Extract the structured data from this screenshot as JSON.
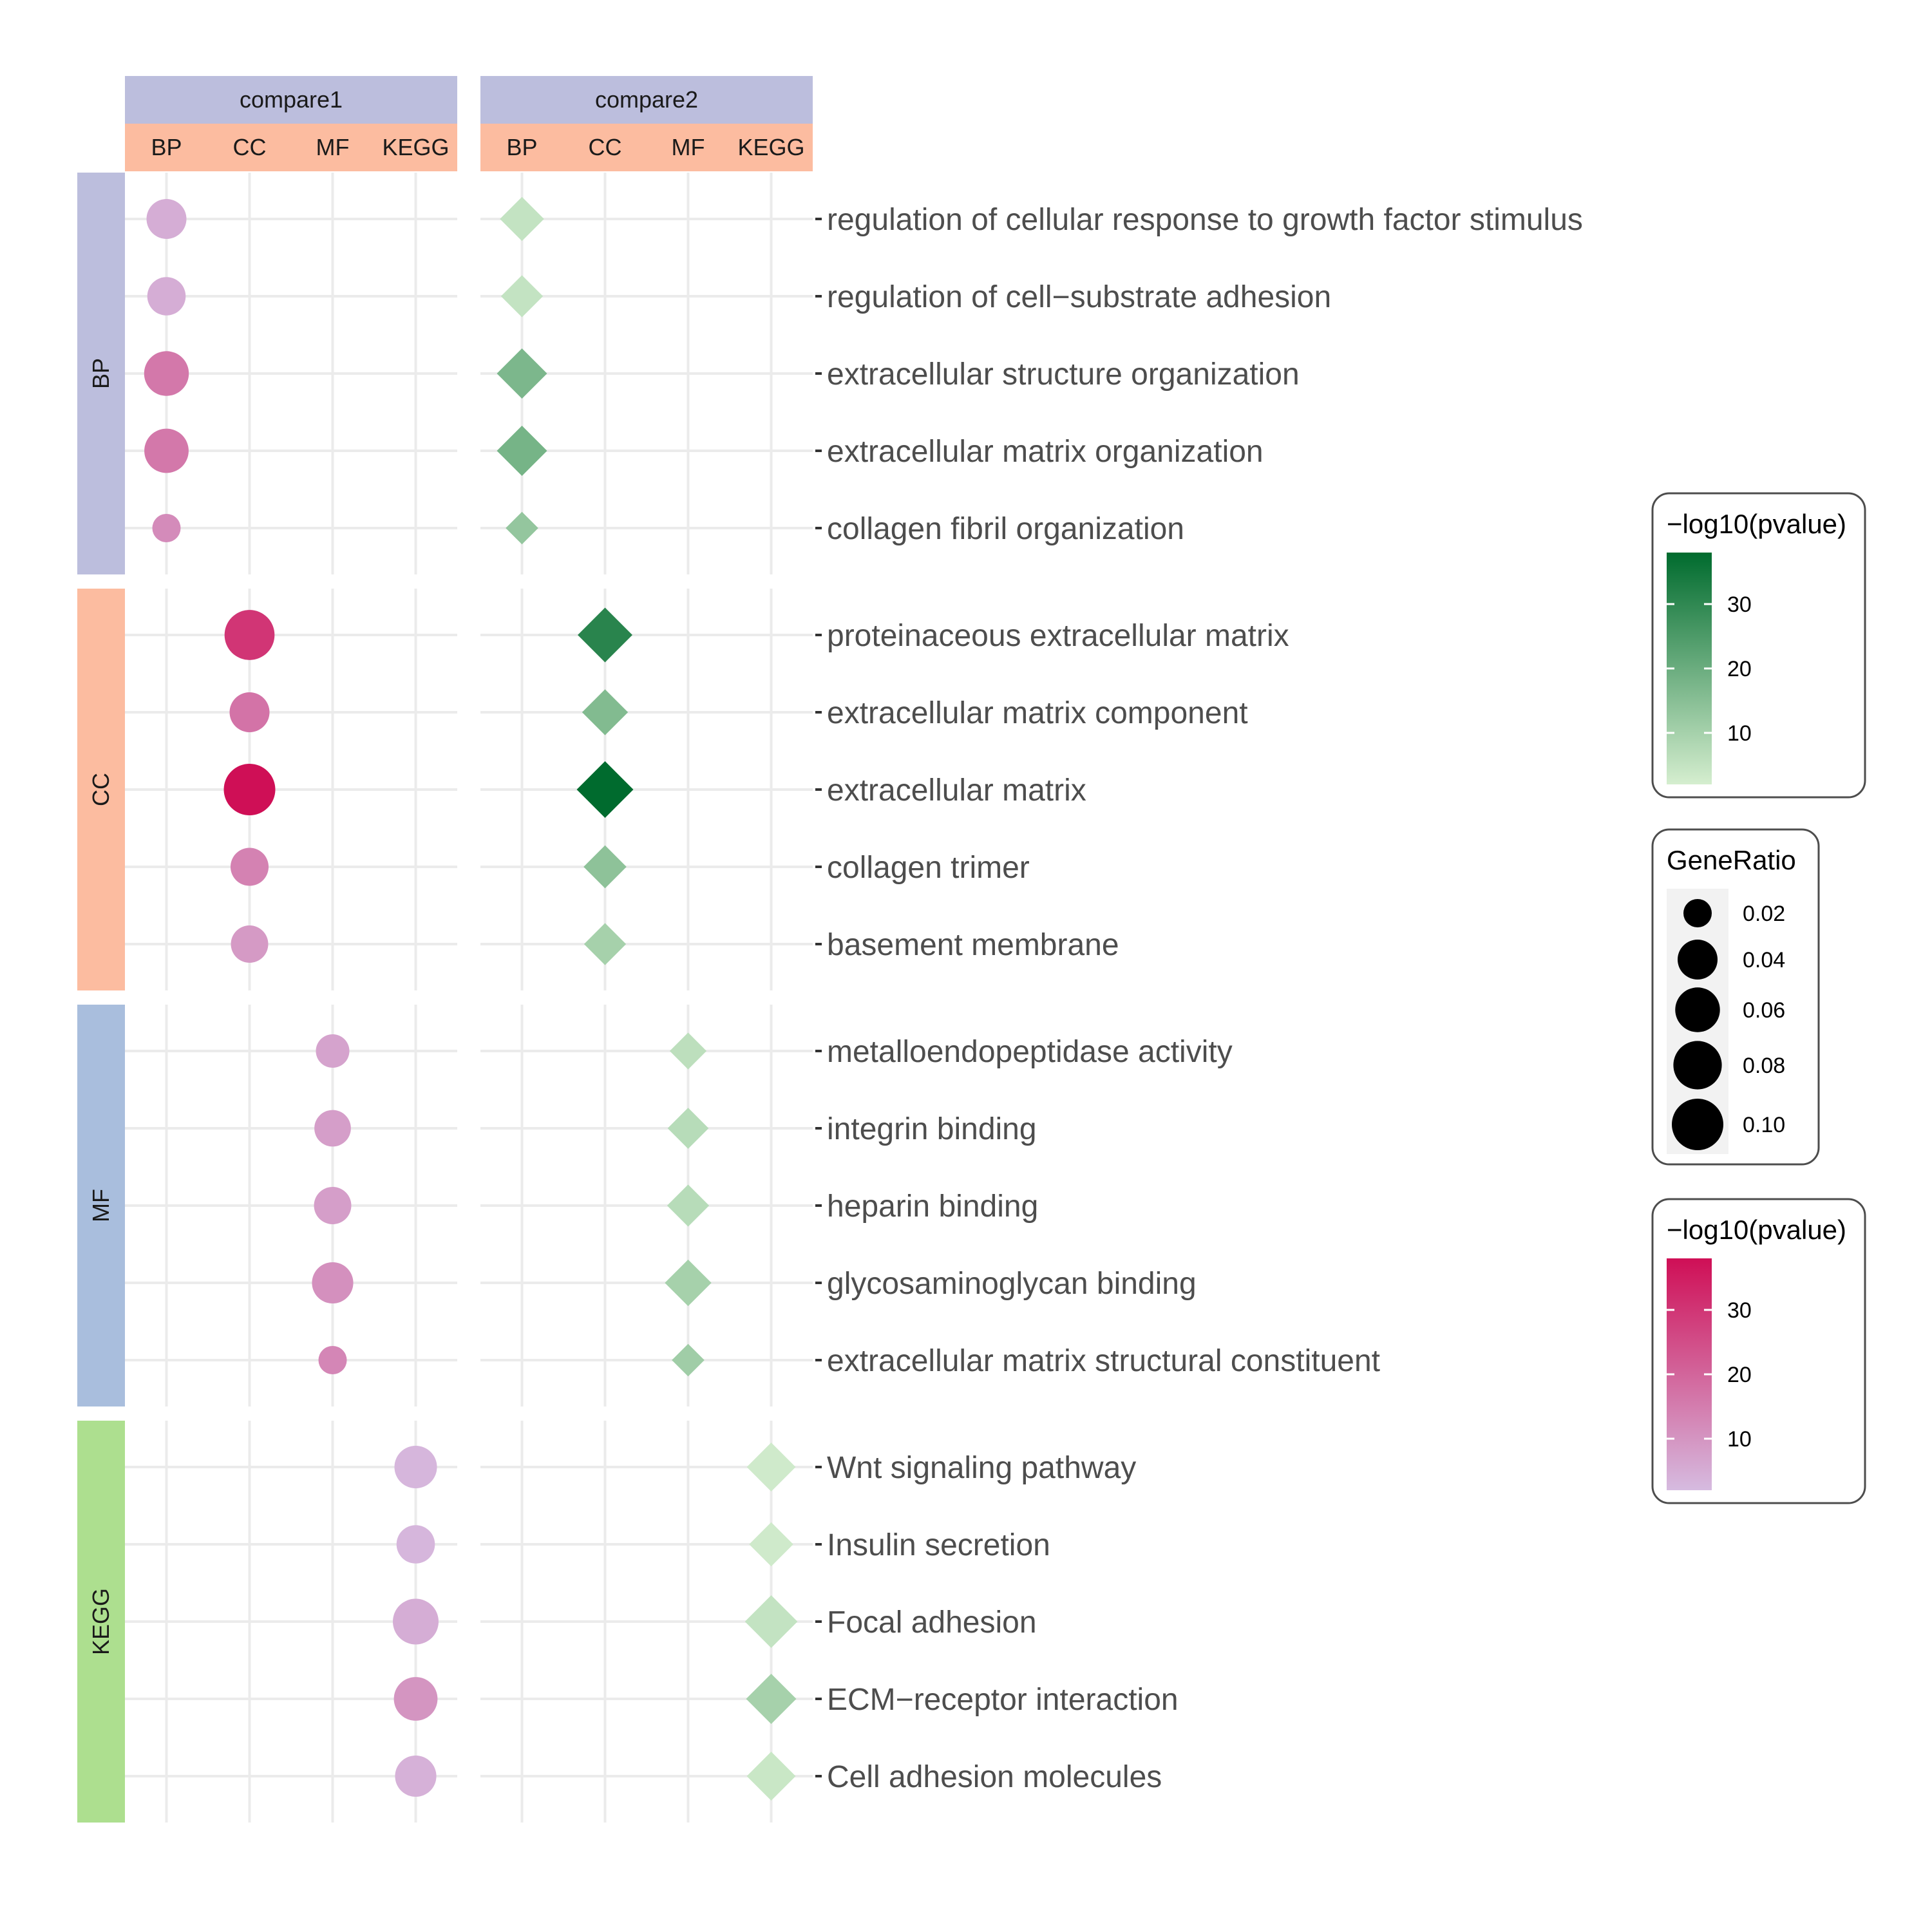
{
  "chart_data": {
    "type": "scatter",
    "subtype": "faceted dot plot",
    "comparisons": [
      "compare1",
      "compare2"
    ],
    "column_categories": [
      "BP",
      "CC",
      "MF",
      "KEGG"
    ],
    "row_groups": [
      {
        "name": "BP",
        "terms": [
          "regulation of cellular response to growth factor stimulus",
          "regulation of cell−substrate adhesion",
          "extracellular structure organization",
          "extracellular matrix organization",
          "collagen fibril organization"
        ]
      },
      {
        "name": "CC",
        "terms": [
          "proteinaceous extracellular matrix",
          "extracellular matrix component",
          "extracellular matrix",
          "collagen trimer",
          "basement membrane"
        ]
      },
      {
        "name": "MF",
        "terms": [
          "metalloendopeptidase activity",
          "integrin binding",
          "heparin binding",
          "glycosaminoglycan binding",
          "extracellular matrix structural constituent"
        ]
      },
      {
        "name": "KEGG",
        "terms": [
          "Wnt signaling pathway",
          "Insulin secretion",
          "Focal adhesion",
          "ECM−receptor interaction",
          "Cell adhesion molecules"
        ]
      }
    ],
    "series": [
      {
        "name": "compare1",
        "shape": "circle",
        "points": [
          {
            "group": "BP",
            "term": "regulation of cellular response to growth factor stimulus",
            "category": "BP",
            "gene_ratio": 0.04,
            "neg_log10_p": 5
          },
          {
            "group": "BP",
            "term": "regulation of cell−substrate adhesion",
            "category": "BP",
            "gene_ratio": 0.035,
            "neg_log10_p": 5
          },
          {
            "group": "BP",
            "term": "extracellular structure organization",
            "category": "BP",
            "gene_ratio": 0.06,
            "neg_log10_p": 16
          },
          {
            "group": "BP",
            "term": "extracellular matrix organization",
            "category": "BP",
            "gene_ratio": 0.058,
            "neg_log10_p": 16
          },
          {
            "group": "BP",
            "term": "collagen fibril organization",
            "category": "BP",
            "gene_ratio": 0.02,
            "neg_log10_p": 12
          },
          {
            "group": "CC",
            "term": "proteinaceous extracellular matrix",
            "category": "CC",
            "gene_ratio": 0.09,
            "neg_log10_p": 30
          },
          {
            "group": "CC",
            "term": "extracellular matrix component",
            "category": "CC",
            "gene_ratio": 0.04,
            "neg_log10_p": 17
          },
          {
            "group": "CC",
            "term": "extracellular matrix",
            "category": "CC",
            "gene_ratio": 0.1,
            "neg_log10_p": 38
          },
          {
            "group": "CC",
            "term": "collagen trimer",
            "category": "CC",
            "gene_ratio": 0.034,
            "neg_log10_p": 14
          },
          {
            "group": "CC",
            "term": "basement membrane",
            "category": "CC",
            "gene_ratio": 0.032,
            "neg_log10_p": 9
          },
          {
            "group": "MF",
            "term": "metalloendopeptidase activity",
            "category": "MF",
            "gene_ratio": 0.024,
            "neg_log10_p": 7
          },
          {
            "group": "MF",
            "term": "integrin binding",
            "category": "MF",
            "gene_ratio": 0.03,
            "neg_log10_p": 8
          },
          {
            "group": "MF",
            "term": "heparin binding",
            "category": "MF",
            "gene_ratio": 0.032,
            "neg_log10_p": 8
          },
          {
            "group": "MF",
            "term": "glycosaminoglycan binding",
            "category": "MF",
            "gene_ratio": 0.045,
            "neg_log10_p": 11
          },
          {
            "group": "MF",
            "term": "extracellular matrix structural constituent",
            "category": "MF",
            "gene_ratio": 0.018,
            "neg_log10_p": 13
          },
          {
            "group": "KEGG",
            "term": "Wnt signaling pathway",
            "category": "KEGG",
            "gene_ratio": 0.05,
            "neg_log10_p": 3
          },
          {
            "group": "KEGG",
            "term": "Insulin secretion",
            "category": "KEGG",
            "gene_ratio": 0.035,
            "neg_log10_p": 3
          },
          {
            "group": "KEGG",
            "term": "Focal adhesion",
            "category": "KEGG",
            "gene_ratio": 0.065,
            "neg_log10_p": 5
          },
          {
            "group": "KEGG",
            "term": "ECM−receptor interaction",
            "category": "KEGG",
            "gene_ratio": 0.055,
            "neg_log10_p": 10
          },
          {
            "group": "KEGG",
            "term": "Cell adhesion molecules",
            "category": "KEGG",
            "gene_ratio": 0.045,
            "neg_log10_p": 4
          }
        ]
      },
      {
        "name": "compare2",
        "shape": "diamond",
        "points": [
          {
            "group": "BP",
            "term": "regulation of cellular response to growth factor stimulus",
            "category": "BP",
            "gene_ratio": 0.035,
            "neg_log10_p": 5
          },
          {
            "group": "BP",
            "term": "regulation of cell−substrate adhesion",
            "category": "BP",
            "gene_ratio": 0.03,
            "neg_log10_p": 5
          },
          {
            "group": "BP",
            "term": "extracellular structure organization",
            "category": "BP",
            "gene_ratio": 0.055,
            "neg_log10_p": 17
          },
          {
            "group": "BP",
            "term": "extracellular matrix organization",
            "category": "BP",
            "gene_ratio": 0.055,
            "neg_log10_p": 18
          },
          {
            "group": "BP",
            "term": "collagen fibril organization",
            "category": "BP",
            "gene_ratio": 0.02,
            "neg_log10_p": 13
          },
          {
            "group": "CC",
            "term": "proteinaceous extracellular matrix",
            "category": "CC",
            "gene_ratio": 0.075,
            "neg_log10_p": 31
          },
          {
            "group": "CC",
            "term": "extracellular matrix component",
            "category": "CC",
            "gene_ratio": 0.04,
            "neg_log10_p": 16
          },
          {
            "group": "CC",
            "term": "extracellular matrix",
            "category": "CC",
            "gene_ratio": 0.085,
            "neg_log10_p": 38
          },
          {
            "group": "CC",
            "term": "collagen trimer",
            "category": "CC",
            "gene_ratio": 0.032,
            "neg_log10_p": 14
          },
          {
            "group": "CC",
            "term": "basement membrane",
            "category": "CC",
            "gene_ratio": 0.03,
            "neg_log10_p": 10
          },
          {
            "group": "MF",
            "term": "metalloendopeptidase activity",
            "category": "MF",
            "gene_ratio": 0.022,
            "neg_log10_p": 6
          },
          {
            "group": "MF",
            "term": "integrin binding",
            "category": "MF",
            "gene_ratio": 0.028,
            "neg_log10_p": 7
          },
          {
            "group": "MF",
            "term": "heparin binding",
            "category": "MF",
            "gene_ratio": 0.03,
            "neg_log10_p": 7
          },
          {
            "group": "MF",
            "term": "glycosaminoglycan binding",
            "category": "MF",
            "gene_ratio": 0.042,
            "neg_log10_p": 10
          },
          {
            "group": "MF",
            "term": "extracellular matrix structural constituent",
            "category": "MF",
            "gene_ratio": 0.016,
            "neg_log10_p": 11
          },
          {
            "group": "KEGG",
            "term": "Wnt signaling pathway",
            "category": "KEGG",
            "gene_ratio": 0.05,
            "neg_log10_p": 3
          },
          {
            "group": "KEGG",
            "term": "Insulin secretion",
            "category": "KEGG",
            "gene_ratio": 0.035,
            "neg_log10_p": 3
          },
          {
            "group": "KEGG",
            "term": "Focal adhesion",
            "category": "KEGG",
            "gene_ratio": 0.065,
            "neg_log10_p": 5
          },
          {
            "group": "KEGG",
            "term": "ECM−receptor interaction",
            "category": "KEGG",
            "gene_ratio": 0.055,
            "neg_log10_p": 10
          },
          {
            "group": "KEGG",
            "term": "Cell adhesion molecules",
            "category": "KEGG",
            "gene_ratio": 0.05,
            "neg_log10_p": 4
          }
        ]
      }
    ],
    "legends": [
      {
        "title": "−log10(pvalue)",
        "kind": "colorbar",
        "for": "compare2",
        "ticks": [
          10,
          20,
          30
        ],
        "range": [
          2,
          38
        ],
        "colors": [
          "#d5eecf",
          "#006b2e"
        ]
      },
      {
        "title": "GeneRatio",
        "kind": "size",
        "ticks": [
          "0.02",
          "0.04",
          "0.06",
          "0.08",
          "0.10"
        ],
        "values": [
          0.02,
          0.04,
          0.06,
          0.08,
          0.1
        ]
      },
      {
        "title": "−log10(pvalue)",
        "kind": "colorbar",
        "for": "compare1",
        "ticks": [
          10,
          20,
          30
        ],
        "range": [
          2,
          38
        ],
        "colors": [
          "#d6bbe0",
          "#cf0f56"
        ]
      }
    ],
    "strip_colors": {
      "compare": "#bcbedd",
      "BP": "#bcbedd",
      "CC": "#fcbca0",
      "MF": "#a9bedd",
      "KEGG": "#addf8f",
      "column_strip": "#fcbca0"
    },
    "grid": true
  }
}
